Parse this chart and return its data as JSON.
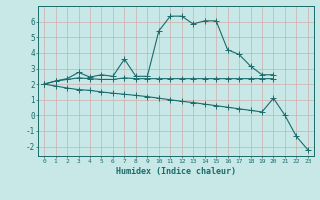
{
  "xlabel": "Humidex (Indice chaleur)",
  "bg_color": "#c8e8e8",
  "line_color": "#1a6b6b",
  "xlim": [
    -0.5,
    23.5
  ],
  "ylim": [
    -2.6,
    7.0
  ],
  "yticks": [
    -2,
    -1,
    0,
    1,
    2,
    3,
    4,
    5,
    6
  ],
  "xticks": [
    0,
    1,
    2,
    3,
    4,
    5,
    6,
    7,
    8,
    9,
    10,
    11,
    12,
    13,
    14,
    15,
    16,
    17,
    18,
    19,
    20,
    21,
    22,
    23
  ],
  "line1_x": [
    0,
    1,
    2,
    3,
    4,
    5,
    6,
    7,
    8,
    9,
    10,
    11,
    12,
    13,
    14,
    15,
    16,
    17,
    18,
    19,
    20
  ],
  "line1_y": [
    2.0,
    2.2,
    2.35,
    2.75,
    2.45,
    2.6,
    2.5,
    3.6,
    2.5,
    2.5,
    5.4,
    6.35,
    6.35,
    5.85,
    6.05,
    6.05,
    4.2,
    3.9,
    3.15,
    2.6,
    2.6
  ],
  "line2_x": [
    0,
    1,
    2,
    3,
    4,
    5,
    6,
    7,
    8,
    9,
    10,
    11,
    12,
    13,
    14,
    15,
    16,
    17,
    18,
    19,
    20
  ],
  "line2_y": [
    2.0,
    2.2,
    2.3,
    2.4,
    2.35,
    2.3,
    2.3,
    2.4,
    2.35,
    2.35,
    2.35,
    2.35,
    2.35,
    2.35,
    2.35,
    2.35,
    2.35,
    2.35,
    2.35,
    2.35,
    2.35
  ],
  "line3_x": [
    0,
    1,
    2,
    3,
    4,
    5,
    6,
    7,
    8,
    9,
    10,
    11,
    12,
    13,
    14,
    15,
    16,
    17,
    18,
    19,
    20,
    21,
    22,
    23
  ],
  "line3_y": [
    2.0,
    1.88,
    1.75,
    1.65,
    1.6,
    1.5,
    1.42,
    1.35,
    1.28,
    1.2,
    1.1,
    1.0,
    0.9,
    0.82,
    0.72,
    0.62,
    0.52,
    0.42,
    0.32,
    0.22,
    1.1,
    0.0,
    -1.35,
    -2.2
  ]
}
